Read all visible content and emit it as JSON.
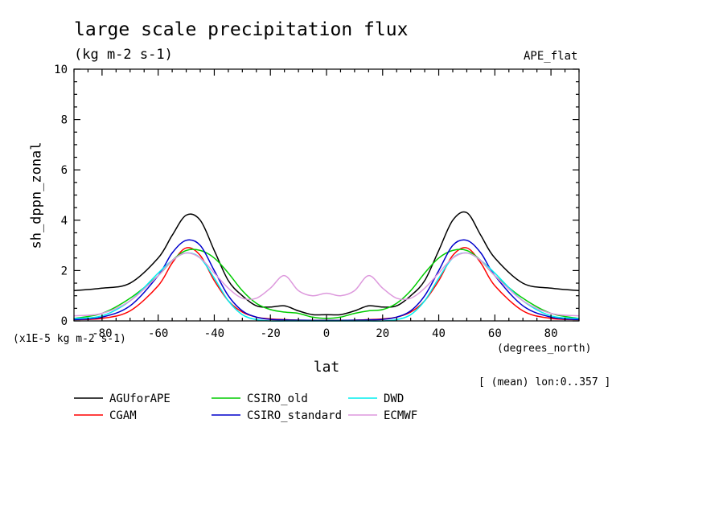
{
  "chart_data": {
    "type": "line",
    "title": "large scale precipitation flux",
    "subtitle": "(kg m-2 s-1)",
    "tag": "APE_flat",
    "ylabel": "sh_dppn_zonal",
    "xlabel": "lat",
    "x_unit": "(degrees_north)",
    "y_scale_note": "(x1E-5 kg m-2 s-1)",
    "footnote": "[ (mean) lon:0..357 ]",
    "xlim": [
      -90,
      90
    ],
    "ylim": [
      0,
      10
    ],
    "x_ticks": [
      -80,
      -60,
      -40,
      -20,
      0,
      20,
      40,
      60,
      80
    ],
    "y_ticks": [
      0,
      2,
      4,
      6,
      8,
      10
    ],
    "grid": false,
    "legend_position": "bottom",
    "x": [
      -90,
      -80,
      -70,
      -60,
      -55,
      -50,
      -45,
      -40,
      -35,
      -30,
      -25,
      -20,
      -15,
      -10,
      -5,
      0,
      5,
      10,
      15,
      20,
      25,
      30,
      35,
      40,
      45,
      50,
      55,
      60,
      70,
      80,
      90
    ],
    "series": [
      {
        "name": "AGUforAPE",
        "color": "#000000",
        "values": [
          1.2,
          1.3,
          1.5,
          2.5,
          3.4,
          4.2,
          4.0,
          2.8,
          1.6,
          1.0,
          0.6,
          0.55,
          0.6,
          0.4,
          0.25,
          0.25,
          0.25,
          0.4,
          0.6,
          0.55,
          0.6,
          1.0,
          1.6,
          2.8,
          4.0,
          4.3,
          3.4,
          2.5,
          1.5,
          1.3,
          1.2
        ]
      },
      {
        "name": "CGAM",
        "color": "#ff0000",
        "values": [
          0.05,
          0.1,
          0.4,
          1.4,
          2.3,
          2.9,
          2.6,
          1.6,
          0.8,
          0.35,
          0.15,
          0.08,
          0.05,
          0.03,
          0.02,
          0.02,
          0.02,
          0.03,
          0.05,
          0.08,
          0.15,
          0.35,
          0.8,
          1.6,
          2.6,
          2.9,
          2.3,
          1.4,
          0.4,
          0.1,
          0.05
        ]
      },
      {
        "name": "CSIRO_old",
        "color": "#00cc00",
        "values": [
          0.1,
          0.3,
          0.9,
          1.8,
          2.4,
          2.8,
          2.8,
          2.5,
          1.9,
          1.2,
          0.7,
          0.45,
          0.35,
          0.3,
          0.15,
          0.1,
          0.15,
          0.3,
          0.4,
          0.45,
          0.7,
          1.2,
          1.9,
          2.5,
          2.8,
          2.8,
          2.4,
          1.8,
          0.9,
          0.3,
          0.1
        ]
      },
      {
        "name": "CSIRO_standard",
        "color": "#0000cc",
        "values": [
          0.05,
          0.15,
          0.6,
          1.8,
          2.7,
          3.2,
          3.0,
          2.0,
          1.0,
          0.4,
          0.15,
          0.06,
          0.04,
          0.03,
          0.02,
          0.02,
          0.02,
          0.03,
          0.04,
          0.06,
          0.15,
          0.4,
          1.0,
          2.0,
          3.0,
          3.2,
          2.7,
          1.8,
          0.6,
          0.15,
          0.05
        ]
      },
      {
        "name": "DWD",
        "color": "#00eeee",
        "values": [
          0.1,
          0.2,
          0.8,
          1.9,
          2.4,
          2.7,
          2.5,
          1.7,
          0.8,
          0.25,
          0.05,
          0.0,
          0.0,
          0.0,
          0.0,
          0.0,
          0.0,
          0.0,
          0.0,
          0.0,
          0.05,
          0.25,
          0.8,
          1.7,
          2.5,
          2.7,
          2.4,
          1.9,
          0.8,
          0.2,
          0.1
        ]
      },
      {
        "name": "ECMWF",
        "color": "#dd99dd",
        "values": [
          0.2,
          0.3,
          0.8,
          1.8,
          2.4,
          2.7,
          2.5,
          1.9,
          1.3,
          0.9,
          0.9,
          1.3,
          1.8,
          1.2,
          1.0,
          1.1,
          1.0,
          1.2,
          1.8,
          1.3,
          0.9,
          0.9,
          1.3,
          1.9,
          2.5,
          2.7,
          2.4,
          1.8,
          0.8,
          0.3,
          0.2
        ]
      }
    ]
  }
}
